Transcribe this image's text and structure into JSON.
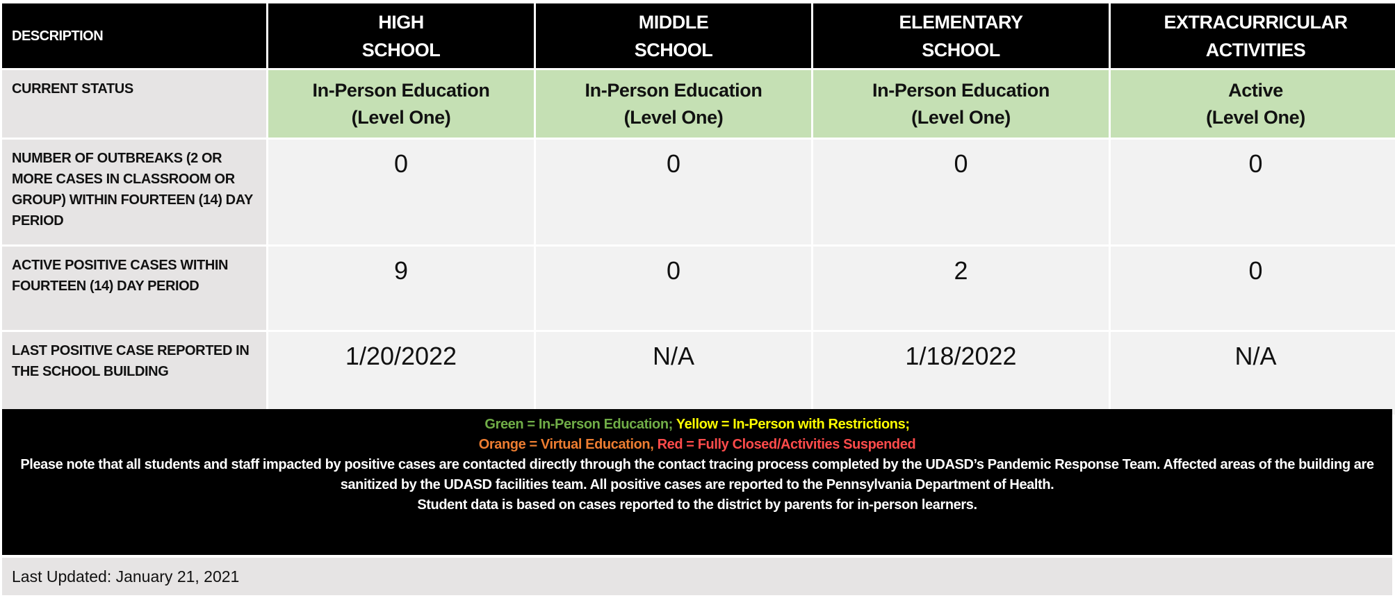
{
  "headers": {
    "description": "DESCRIPTION",
    "high": [
      "HIGH",
      "SCHOOL"
    ],
    "middle": [
      "MIDDLE",
      "SCHOOL"
    ],
    "elementary": [
      "ELEMENTARY",
      "SCHOOL"
    ],
    "extra": [
      "EXTRACURRICULAR",
      "ACTIVITIES"
    ]
  },
  "rows": {
    "status": {
      "label": "CURRENT STATUS",
      "values": [
        [
          "In-Person Education",
          "(Level One)"
        ],
        [
          "In-Person Education",
          "(Level One)"
        ],
        [
          "In-Person Education",
          "(Level One)"
        ],
        [
          "Active",
          "(Level One)"
        ]
      ],
      "color": "#c5e0b4"
    },
    "outbreaks": {
      "label": "NUMBER OF OUTBREAKS (2 OR MORE CASES IN CLASSROOM OR GROUP) WITHIN FOURTEEN (14) DAY PERIOD",
      "values": [
        "0",
        "0",
        "0",
        "0"
      ]
    },
    "active": {
      "label": "ACTIVE POSITIVE CASES WITHIN FOURTEEN (14) DAY PERIOD",
      "values": [
        "9",
        "0",
        "2",
        "0"
      ]
    },
    "last_case": {
      "label": "LAST POSITIVE CASE REPORTED IN THE SCHOOL BUILDING",
      "values": [
        "1/20/2022",
        "N/A",
        "1/18/2022",
        "N/A"
      ]
    }
  },
  "legend": {
    "green": "Green = In-Person Education;",
    "yellow": "Yellow = In-Person with Restrictions;",
    "orange": "Orange = Virtual Education,",
    "red": "Red = Fully Closed/Activities Suspended",
    "colors": {
      "green": "#70ad47",
      "yellow": "#ffff00",
      "orange": "#ed7d31",
      "red": "#ff4b4b"
    }
  },
  "notes": [
    "Please note that all students and staff impacted by positive cases are contacted directly through the contact tracing process completed by the UDASD’s Pandemic Response Team.  Affected areas of the building are sanitized by the UDASD facilities team.  All positive cases are reported to the Pennsylvania Department of Health.",
    "Student data is based on cases reported to the district by parents for in-person learners."
  ],
  "last_updated": "Last Updated: January 21, 2021"
}
